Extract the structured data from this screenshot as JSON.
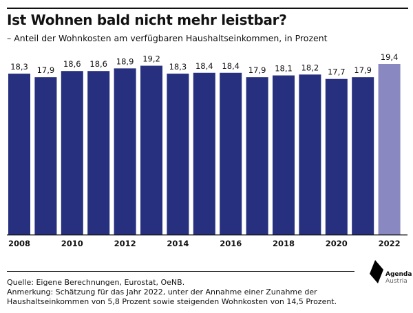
{
  "header": {
    "title": "Ist Wohnen bald nicht mehr leistbar?",
    "subtitle": "– Anteil der Wohnkosten am verfügbaren Haushaltseinkommen, in Prozent"
  },
  "chart_data": {
    "type": "bar",
    "title": "Ist Wohnen bald nicht mehr leistbar?",
    "subtitle": "– Anteil der Wohnkosten am verfügbaren Haushaltseinkommen, in Prozent",
    "categories": [
      "2008",
      "2009",
      "2010",
      "2011",
      "2012",
      "2013",
      "2014",
      "2015",
      "2016",
      "2017",
      "2018",
      "2019",
      "2020",
      "2021",
      "2022"
    ],
    "values": [
      18.3,
      17.9,
      18.6,
      18.6,
      18.9,
      19.2,
      18.3,
      18.4,
      18.4,
      17.9,
      18.1,
      18.2,
      17.7,
      17.9,
      19.4
    ],
    "value_labels": [
      "18,3",
      "17,9",
      "18,6",
      "18,6",
      "18,9",
      "19,2",
      "18,3",
      "18,4",
      "18,4",
      "17,9",
      "18,1",
      "18,2",
      "17,7",
      "17,9",
      "19,4"
    ],
    "tick_labels": [
      "2008",
      "",
      "2010",
      "",
      "2012",
      "",
      "2014",
      "",
      "2016",
      "",
      "2018",
      "",
      "2020",
      "",
      "2022"
    ],
    "ylim": [
      0,
      19.4
    ],
    "grid": false,
    "colors": {
      "actual": "#26307f",
      "estimate": "#8a88c0"
    },
    "estimate_category": "2022"
  },
  "footer": {
    "source": "Quelle: Eigene Berechnungen, Eurostat, OeNB.",
    "note_line1": "Anmerkung: Schätzung für das Jahr 2022, unter der Annahme einer Zunahme der",
    "note_line2": "Haushaltseinkommen von 5,8 Prozent sowie steigenden Wohnkosten von 14,5 Prozent."
  },
  "logo": {
    "line1": "Agenda",
    "line2": "Austria"
  }
}
